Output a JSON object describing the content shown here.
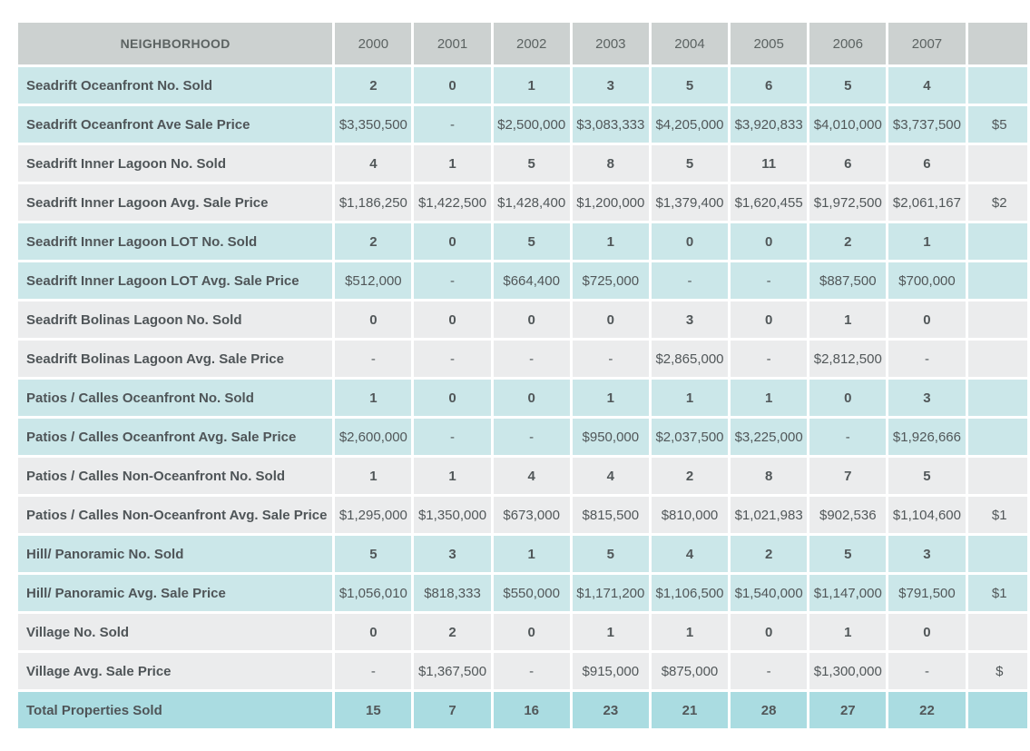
{
  "chart_data": {
    "type": "table",
    "header_label": "NEIGHBORHOOD",
    "years": [
      "2000",
      "2001",
      "2002",
      "2003",
      "2004",
      "2005",
      "2006",
      "2007",
      ""
    ],
    "rows": [
      {
        "label": "Seadrift Oceanfront No. Sold",
        "kind": "count",
        "band": "teal",
        "values": [
          "2",
          "0",
          "1",
          "3",
          "5",
          "6",
          "5",
          "4",
          ""
        ]
      },
      {
        "label": "Seadrift Oceanfront Ave Sale Price",
        "kind": "price",
        "band": "teal",
        "values": [
          "$3,350,500",
          "-",
          "$2,500,000",
          "$3,083,333",
          "$4,205,000",
          "$3,920,833",
          "$4,010,000",
          "$3,737,500",
          "$5"
        ]
      },
      {
        "label": "Seadrift Inner Lagoon No. Sold",
        "kind": "count",
        "band": "gray",
        "values": [
          "4",
          "1",
          "5",
          "8",
          "5",
          "11",
          "6",
          "6",
          ""
        ]
      },
      {
        "label": "Seadrift Inner Lagoon Avg. Sale Price",
        "kind": "price",
        "band": "gray",
        "values": [
          "$1,186,250",
          "$1,422,500",
          "$1,428,400",
          "$1,200,000",
          "$1,379,400",
          "$1,620,455",
          "$1,972,500",
          "$2,061,167",
          "$2"
        ]
      },
      {
        "label": "Seadrift Inner Lagoon LOT No. Sold",
        "kind": "count",
        "band": "teal",
        "values": [
          "2",
          "0",
          "5",
          "1",
          "0",
          "0",
          "2",
          "1",
          ""
        ]
      },
      {
        "label": "Seadrift Inner Lagoon LOT Avg. Sale Price",
        "kind": "price",
        "band": "teal",
        "values": [
          "$512,000",
          "-",
          "$664,400",
          "$725,000",
          "-",
          "-",
          "$887,500",
          "$700,000",
          ""
        ]
      },
      {
        "label": "Seadrift Bolinas Lagoon No. Sold",
        "kind": "count",
        "band": "gray",
        "values": [
          "0",
          "0",
          "0",
          "0",
          "3",
          "0",
          "1",
          "0",
          ""
        ]
      },
      {
        "label": "Seadrift Bolinas Lagoon Avg. Sale Price",
        "kind": "price",
        "band": "gray",
        "values": [
          "-",
          "-",
          "-",
          "-",
          "$2,865,000",
          "-",
          "$2,812,500",
          "-",
          ""
        ]
      },
      {
        "label": "Patios / Calles Oceanfront No. Sold",
        "kind": "count",
        "band": "teal",
        "values": [
          "1",
          "0",
          "0",
          "1",
          "1",
          "1",
          "0",
          "3",
          ""
        ]
      },
      {
        "label": "Patios / Calles Oceanfront Avg. Sale Price",
        "kind": "price",
        "band": "teal",
        "values": [
          "$2,600,000",
          "-",
          "-",
          "$950,000",
          "$2,037,500",
          "$3,225,000",
          "-",
          "$1,926,666",
          ""
        ]
      },
      {
        "label": "Patios / Calles Non-Oceanfront No. Sold",
        "kind": "count",
        "band": "gray",
        "values": [
          "1",
          "1",
          "4",
          "4",
          "2",
          "8",
          "7",
          "5",
          ""
        ]
      },
      {
        "label": "Patios / Calles Non-Oceanfront Avg. Sale Price",
        "kind": "price",
        "band": "gray",
        "values": [
          "$1,295,000",
          "$1,350,000",
          "$673,000",
          "$815,500",
          "$810,000",
          "$1,021,983",
          "$902,536",
          "$1,104,600",
          "$1"
        ]
      },
      {
        "label": "Hill/ Panoramic No. Sold",
        "kind": "count",
        "band": "teal",
        "values": [
          "5",
          "3",
          "1",
          "5",
          "4",
          "2",
          "5",
          "3",
          ""
        ]
      },
      {
        "label": "Hill/ Panoramic Avg. Sale Price",
        "kind": "price",
        "band": "teal",
        "values": [
          "$1,056,010",
          "$818,333",
          "$550,000",
          "$1,171,200",
          "$1,106,500",
          "$1,540,000",
          "$1,147,000",
          "$791,500",
          "$1"
        ]
      },
      {
        "label": "Village No. Sold",
        "kind": "count",
        "band": "gray",
        "values": [
          "0",
          "2",
          "0",
          "1",
          "1",
          "0",
          "1",
          "0",
          ""
        ]
      },
      {
        "label": "Village Avg. Sale Price",
        "kind": "price",
        "band": "gray",
        "values": [
          "-",
          "$1,367,500",
          "-",
          "$915,000",
          "$875,000",
          "-",
          "$1,300,000",
          "-",
          "$"
        ]
      },
      {
        "label": "Total Properties Sold",
        "kind": "count",
        "band": "total",
        "values": [
          "15",
          "7",
          "16",
          "23",
          "21",
          "28",
          "27",
          "22",
          ""
        ]
      }
    ]
  },
  "colors": {
    "header_bg": "#ccd1d0",
    "teal_row_bg": "#cbe7e9",
    "gray_row_bg": "#ebeced",
    "total_row_bg": "#aadce1",
    "label_text": "#4f5558",
    "value_text": "#515759",
    "header_text": "#5c6362",
    "background": "#ffffff"
  }
}
